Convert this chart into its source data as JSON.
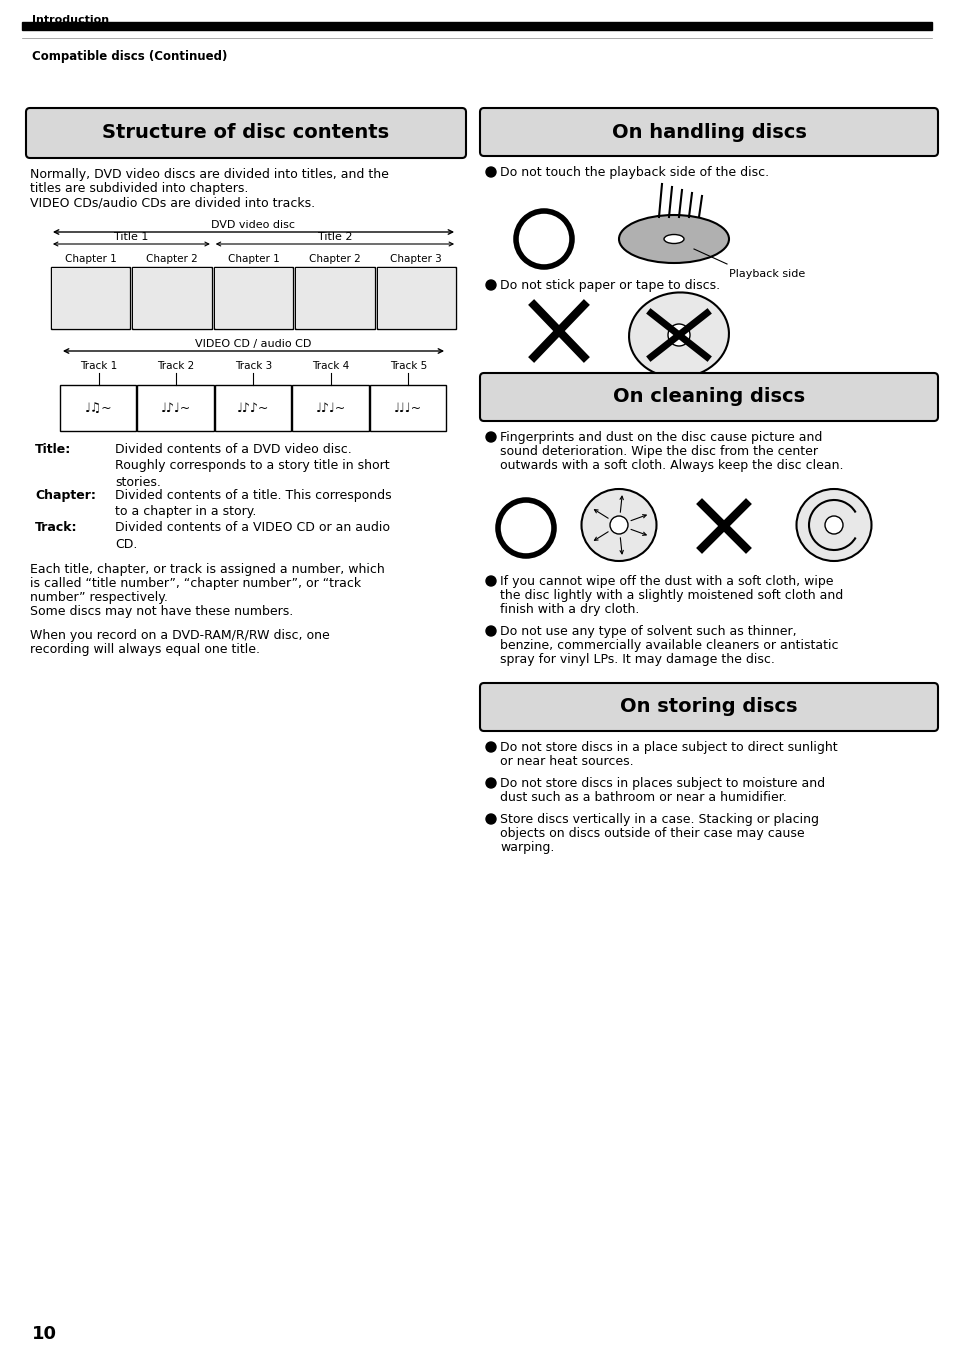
{
  "page_number": "10",
  "header_section": "Introduction",
  "subheader": "Compatible discs (Continued)",
  "left_box_title": "Structure of disc contents",
  "left_intro_text_lines": [
    "Normally, DVD video discs are divided into titles, and the",
    "titles are subdivided into chapters.",
    "VIDEO CDs/audio CDs are divided into tracks."
  ],
  "dvd_label": "DVD video disc",
  "title1_label": "Title 1",
  "title2_label": "Title 2",
  "dvd_chapters": [
    "Chapter 1",
    "Chapter 2",
    "Chapter 1",
    "Chapter 2",
    "Chapter 3"
  ],
  "vcd_label": "VIDEO CD / audio CD",
  "tracks": [
    "Track 1",
    "Track 2",
    "Track 3",
    "Track 4",
    "Track 5"
  ],
  "def_title_text": "Divided contents of a DVD video disc.\nRoughly corresponds to a story title in short\nstories.",
  "def_chapter_text": "Divided contents of a title. This corresponds\nto a chapter in a story.",
  "def_track_text": "Divided contents of a VIDEO CD or an audio\nCD.",
  "left_extra_text1_lines": [
    "Each title, chapter, or track is assigned a number, which",
    "is called “title number”, “chapter number”, or “track",
    "number” respectively.",
    "Some discs may not have these numbers."
  ],
  "left_extra_text2_lines": [
    "When you record on a DVD-RAM/R/RW disc, one",
    "recording will always equal one title."
  ],
  "right_box1_title": "On handling discs",
  "handling_bullet1": "Do not touch the playback side of the disc.",
  "playback_side_label": "Playback side",
  "handling_bullet2": "Do not stick paper or tape to discs.",
  "right_box2_title": "On cleaning discs",
  "cleaning_bullet1_lines": [
    "Fingerprints and dust on the disc cause picture and",
    "sound deterioration. Wipe the disc from the center",
    "outwards with a soft cloth. Always keep the disc clean."
  ],
  "cleaning_bullet2_lines": [
    "If you cannot wipe off the dust with a soft cloth, wipe",
    "the disc lightly with a slightly moistened soft cloth and",
    "finish with a dry cloth."
  ],
  "cleaning_bullet3_lines": [
    "Do not use any type of solvent such as thinner,",
    "benzine, commercially available cleaners or antistatic",
    "spray for vinyl LPs. It may damage the disc."
  ],
  "right_box3_title": "On storing discs",
  "storing_bullet1_lines": [
    "Do not store discs in a place subject to direct sunlight",
    "or near heat sources."
  ],
  "storing_bullet2_lines": [
    "Do not store discs in places subject to moisture and",
    "dust such as a bathroom or near a humidifier."
  ],
  "storing_bullet3_lines": [
    "Store discs vertically in a case. Stacking or placing",
    "objects on discs outside of their case may cause",
    "warping."
  ],
  "bg_color": "#ffffff",
  "black": "#000000",
  "box_fill": "#d8d8d8",
  "light_gray": "#f0f0f0"
}
